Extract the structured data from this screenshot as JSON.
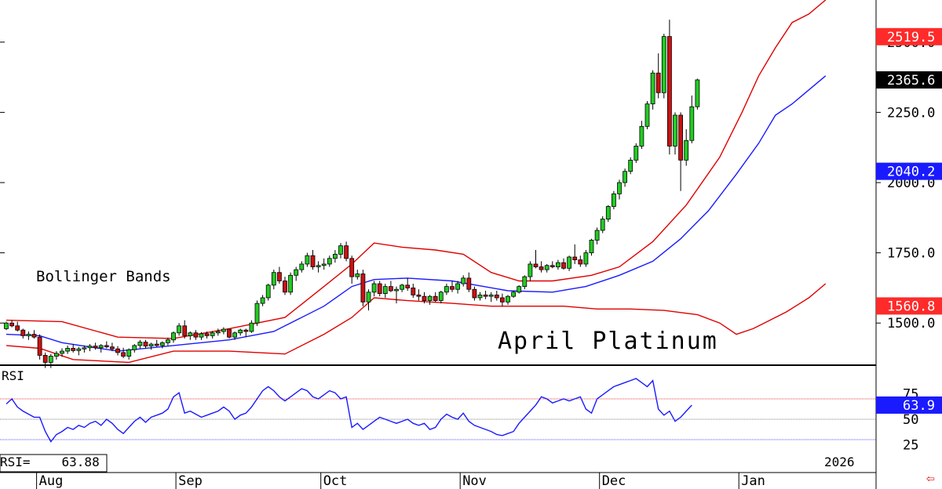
{
  "chart_data": {
    "type": "candlestick",
    "title": "April Platinum",
    "indicator_label": "Bollinger Bands",
    "price_axis": {
      "range": [
        1350,
        2650
      ],
      "ticks": [
        {
          "value": 2500,
          "label": "2500.0"
        },
        {
          "value": 2250,
          "label": "2250.0"
        },
        {
          "value": 2000,
          "label": "2000.0"
        },
        {
          "value": 1750,
          "label": "1750.0"
        },
        {
          "value": 1500,
          "label": "1500.0"
        }
      ]
    },
    "price_badges": [
      {
        "label": "2519.5",
        "value": 2519.5,
        "color": "#ff2a2a",
        "text_color": "#ffffff"
      },
      {
        "label": "2365.6",
        "value": 2365.6,
        "color": "#000000",
        "text_color": "#ffffff"
      },
      {
        "label": "2040.2",
        "value": 2040.2,
        "color": "#1a1aff",
        "text_color": "#ffffff"
      },
      {
        "label": "1560.8",
        "value": 1560.8,
        "color": "#ff2a2a",
        "text_color": "#ffffff"
      }
    ],
    "months": [
      "Aug",
      "Sep",
      "Oct",
      "Nov",
      "Dec",
      "Jan"
    ],
    "month_start_index": [
      6,
      31,
      57,
      82,
      107,
      132
    ],
    "year_label": "2026",
    "candles": [
      [
        1480,
        1505,
        1475,
        1500
      ],
      [
        1500,
        1510,
        1485,
        1490
      ],
      [
        1490,
        1505,
        1470,
        1475
      ],
      [
        1475,
        1480,
        1445,
        1455
      ],
      [
        1455,
        1470,
        1440,
        1460
      ],
      [
        1460,
        1475,
        1445,
        1450
      ],
      [
        1450,
        1460,
        1370,
        1385
      ],
      [
        1385,
        1395,
        1340,
        1360
      ],
      [
        1360,
        1390,
        1340,
        1382
      ],
      [
        1382,
        1400,
        1370,
        1392
      ],
      [
        1392,
        1410,
        1380,
        1400
      ],
      [
        1400,
        1420,
        1390,
        1410
      ],
      [
        1410,
        1425,
        1395,
        1402
      ],
      [
        1402,
        1415,
        1385,
        1408
      ],
      [
        1408,
        1420,
        1395,
        1412
      ],
      [
        1412,
        1425,
        1400,
        1418
      ],
      [
        1418,
        1430,
        1405,
        1412
      ],
      [
        1412,
        1425,
        1395,
        1420
      ],
      [
        1420,
        1435,
        1410,
        1415
      ],
      [
        1415,
        1430,
        1400,
        1408
      ],
      [
        1408,
        1418,
        1385,
        1395
      ],
      [
        1395,
        1412,
        1375,
        1382
      ],
      [
        1382,
        1410,
        1370,
        1405
      ],
      [
        1405,
        1425,
        1395,
        1420
      ],
      [
        1420,
        1440,
        1410,
        1432
      ],
      [
        1432,
        1440,
        1410,
        1418
      ],
      [
        1418,
        1430,
        1405,
        1425
      ],
      [
        1425,
        1440,
        1415,
        1420
      ],
      [
        1420,
        1435,
        1410,
        1430
      ],
      [
        1430,
        1448,
        1420,
        1440
      ],
      [
        1440,
        1470,
        1430,
        1465
      ],
      [
        1465,
        1500,
        1455,
        1490
      ],
      [
        1490,
        1510,
        1445,
        1455
      ],
      [
        1455,
        1470,
        1440,
        1465
      ],
      [
        1465,
        1475,
        1440,
        1450
      ],
      [
        1450,
        1468,
        1440,
        1462
      ],
      [
        1462,
        1470,
        1445,
        1455
      ],
      [
        1455,
        1472,
        1445,
        1465
      ],
      [
        1465,
        1480,
        1455,
        1470
      ],
      [
        1470,
        1485,
        1460,
        1478
      ],
      [
        1478,
        1480,
        1445,
        1450
      ],
      [
        1450,
        1470,
        1440,
        1465
      ],
      [
        1465,
        1480,
        1455,
        1475
      ],
      [
        1475,
        1480,
        1450,
        1470
      ],
      [
        1470,
        1510,
        1465,
        1500
      ],
      [
        1500,
        1580,
        1490,
        1570
      ],
      [
        1570,
        1600,
        1560,
        1590
      ],
      [
        1590,
        1640,
        1580,
        1635
      ],
      [
        1635,
        1690,
        1620,
        1680
      ],
      [
        1680,
        1700,
        1640,
        1650
      ],
      [
        1650,
        1665,
        1600,
        1610
      ],
      [
        1610,
        1680,
        1600,
        1670
      ],
      [
        1670,
        1700,
        1650,
        1690
      ],
      [
        1690,
        1720,
        1680,
        1710
      ],
      [
        1710,
        1750,
        1700,
        1740
      ],
      [
        1740,
        1760,
        1690,
        1700
      ],
      [
        1700,
        1720,
        1680,
        1705
      ],
      [
        1705,
        1730,
        1690,
        1710
      ],
      [
        1710,
        1740,
        1700,
        1730
      ],
      [
        1730,
        1760,
        1715,
        1745
      ],
      [
        1745,
        1785,
        1730,
        1775
      ],
      [
        1775,
        1790,
        1720,
        1730
      ],
      [
        1730,
        1740,
        1640,
        1665
      ],
      [
        1665,
        1690,
        1655,
        1675
      ],
      [
        1675,
        1690,
        1560,
        1575
      ],
      [
        1575,
        1620,
        1545,
        1610
      ],
      [
        1610,
        1650,
        1595,
        1640
      ],
      [
        1640,
        1650,
        1595,
        1605
      ],
      [
        1605,
        1640,
        1590,
        1630
      ],
      [
        1630,
        1650,
        1610,
        1615
      ],
      [
        1615,
        1630,
        1570,
        1620
      ],
      [
        1620,
        1640,
        1610,
        1635
      ],
      [
        1635,
        1660,
        1615,
        1625
      ],
      [
        1625,
        1640,
        1590,
        1600
      ],
      [
        1600,
        1620,
        1580,
        1595
      ],
      [
        1595,
        1610,
        1570,
        1580
      ],
      [
        1580,
        1600,
        1565,
        1595
      ],
      [
        1595,
        1610,
        1575,
        1580
      ],
      [
        1580,
        1615,
        1570,
        1610
      ],
      [
        1610,
        1640,
        1600,
        1630
      ],
      [
        1630,
        1650,
        1610,
        1620
      ],
      [
        1620,
        1650,
        1605,
        1640
      ],
      [
        1640,
        1670,
        1630,
        1660
      ],
      [
        1660,
        1680,
        1610,
        1620
      ],
      [
        1620,
        1630,
        1580,
        1590
      ],
      [
        1590,
        1610,
        1580,
        1600
      ],
      [
        1600,
        1615,
        1585,
        1595
      ],
      [
        1595,
        1610,
        1575,
        1600
      ],
      [
        1600,
        1615,
        1580,
        1590
      ],
      [
        1590,
        1605,
        1560,
        1575
      ],
      [
        1575,
        1600,
        1565,
        1595
      ],
      [
        1595,
        1615,
        1590,
        1610
      ],
      [
        1610,
        1635,
        1605,
        1630
      ],
      [
        1630,
        1670,
        1620,
        1665
      ],
      [
        1665,
        1720,
        1650,
        1710
      ],
      [
        1710,
        1760,
        1695,
        1700
      ],
      [
        1700,
        1720,
        1680,
        1690
      ],
      [
        1690,
        1710,
        1680,
        1705
      ],
      [
        1705,
        1720,
        1695,
        1700
      ],
      [
        1700,
        1725,
        1690,
        1715
      ],
      [
        1715,
        1730,
        1690,
        1695
      ],
      [
        1695,
        1740,
        1685,
        1735
      ],
      [
        1735,
        1780,
        1710,
        1725
      ],
      [
        1725,
        1740,
        1700,
        1710
      ],
      [
        1710,
        1760,
        1700,
        1750
      ],
      [
        1750,
        1800,
        1740,
        1795
      ],
      [
        1795,
        1840,
        1780,
        1830
      ],
      [
        1830,
        1880,
        1820,
        1870
      ],
      [
        1870,
        1920,
        1860,
        1915
      ],
      [
        1915,
        1970,
        1905,
        1960
      ],
      [
        1960,
        2010,
        1940,
        2000
      ],
      [
        2000,
        2050,
        1985,
        2040
      ],
      [
        2040,
        2090,
        2030,
        2080
      ],
      [
        2080,
        2140,
        2070,
        2130
      ],
      [
        2130,
        2220,
        2120,
        2200
      ],
      [
        2200,
        2290,
        2190,
        2280
      ],
      [
        2280,
        2400,
        2260,
        2390
      ],
      [
        2390,
        2460,
        2300,
        2320
      ],
      [
        2320,
        2530,
        2300,
        2520
      ],
      [
        2520,
        2580,
        2100,
        2130
      ],
      [
        2130,
        2250,
        2100,
        2240
      ],
      [
        2240,
        2250,
        1970,
        2080
      ],
      [
        2080,
        2190,
        2060,
        2150
      ],
      [
        2150,
        2310,
        2140,
        2270
      ],
      [
        2270,
        2370,
        2260,
        2365.6
      ]
    ],
    "bollinger": {
      "upper": [
        [
          0,
          1510
        ],
        [
          10,
          1505
        ],
        [
          20,
          1450
        ],
        [
          30,
          1445
        ],
        [
          40,
          1480
        ],
        [
          50,
          1520
        ],
        [
          57,
          1630
        ],
        [
          62,
          1710
        ],
        [
          66,
          1785
        ],
        [
          71,
          1770
        ],
        [
          77,
          1760
        ],
        [
          82,
          1745
        ],
        [
          87,
          1680
        ],
        [
          92,
          1650
        ],
        [
          98,
          1650
        ],
        [
          105,
          1670
        ],
        [
          110,
          1700
        ],
        [
          116,
          1790
        ],
        [
          122,
          1920
        ],
        [
          128,
          2090
        ],
        [
          132,
          2250
        ],
        [
          135,
          2380
        ],
        [
          138,
          2480
        ],
        [
          141,
          2570
        ],
        [
          144,
          2600
        ],
        [
          147,
          2650
        ]
      ],
      "middle": [
        [
          0,
          1460
        ],
        [
          6,
          1455
        ],
        [
          10,
          1430
        ],
        [
          20,
          1400
        ],
        [
          30,
          1420
        ],
        [
          40,
          1440
        ],
        [
          48,
          1470
        ],
        [
          57,
          1560
        ],
        [
          62,
          1630
        ],
        [
          66,
          1655
        ],
        [
          72,
          1660
        ],
        [
          80,
          1650
        ],
        [
          90,
          1615
        ],
        [
          98,
          1610
        ],
        [
          104,
          1630
        ],
        [
          110,
          1670
        ],
        [
          116,
          1720
        ],
        [
          121,
          1800
        ],
        [
          126,
          1900
        ],
        [
          131,
          2030
        ],
        [
          135,
          2140
        ],
        [
          138,
          2240
        ],
        [
          141,
          2280
        ],
        [
          144,
          2330
        ],
        [
          147,
          2380
        ]
      ],
      "lower": [
        [
          0,
          1420
        ],
        [
          6,
          1410
        ],
        [
          12,
          1370
        ],
        [
          22,
          1360
        ],
        [
          30,
          1400
        ],
        [
          40,
          1400
        ],
        [
          50,
          1390
        ],
        [
          57,
          1460
        ],
        [
          62,
          1520
        ],
        [
          66,
          1590
        ],
        [
          72,
          1580
        ],
        [
          80,
          1570
        ],
        [
          87,
          1560
        ],
        [
          92,
          1560
        ],
        [
          100,
          1560
        ],
        [
          106,
          1550
        ],
        [
          112,
          1550
        ],
        [
          118,
          1545
        ],
        [
          124,
          1530
        ],
        [
          128,
          1500
        ],
        [
          131,
          1460
        ],
        [
          134,
          1480
        ],
        [
          136,
          1500
        ],
        [
          140,
          1540
        ],
        [
          144,
          1590
        ],
        [
          147,
          1640
        ]
      ]
    },
    "rsi": {
      "label": "RSI",
      "readout_label": "RSI=",
      "readout_value": "63.88",
      "range": [
        0,
        100
      ],
      "ticks": [
        {
          "value": 75,
          "label": "75"
        },
        {
          "value": 50,
          "label": "50"
        },
        {
          "value": 25,
          "label": "25"
        }
      ],
      "current_badge": {
        "label": "63.9",
        "value": 63.9,
        "color": "#1a1aff",
        "text_color": "#ffffff"
      },
      "overbought": 70,
      "oversold": 30,
      "values": [
        65,
        70,
        62,
        58,
        55,
        52,
        52,
        38,
        28,
        35,
        38,
        42,
        40,
        44,
        42,
        46,
        48,
        44,
        50,
        46,
        40,
        36,
        42,
        48,
        52,
        47,
        52,
        54,
        56,
        60,
        72,
        76,
        56,
        58,
        55,
        52,
        54,
        56,
        58,
        62,
        58,
        50,
        54,
        56,
        62,
        70,
        78,
        82,
        78,
        72,
        68,
        72,
        76,
        80,
        78,
        72,
        70,
        74,
        78,
        76,
        70,
        72,
        42,
        46,
        40,
        44,
        48,
        52,
        50,
        48,
        46,
        48,
        50,
        46,
        44,
        46,
        40,
        42,
        50,
        55,
        52,
        50,
        56,
        48,
        44,
        42,
        40,
        38,
        35,
        34,
        36,
        38,
        46,
        52,
        58,
        64,
        72,
        70,
        66,
        68,
        70,
        68,
        70,
        72,
        60,
        56,
        70,
        74,
        78,
        82,
        84,
        86,
        88,
        90,
        86,
        82,
        88,
        60,
        54,
        58,
        48,
        52,
        58,
        63.88
      ]
    }
  }
}
